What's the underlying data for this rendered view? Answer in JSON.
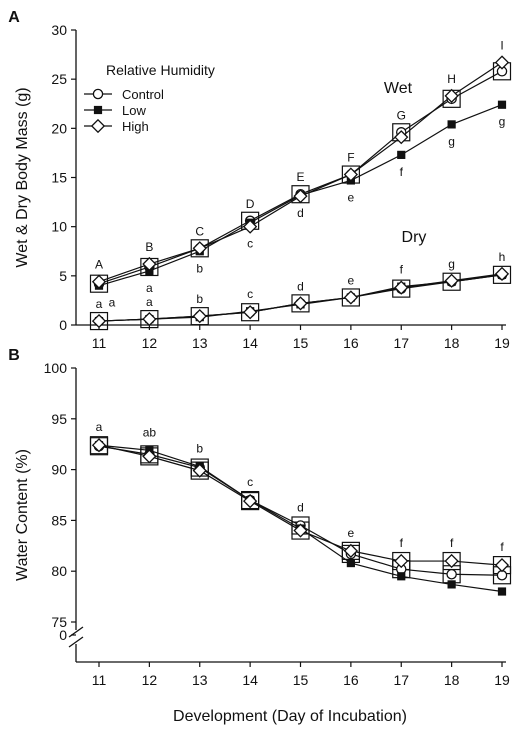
{
  "figure_xlabel": "Development (Day of Incubation)",
  "colors": {
    "ink": "#111111",
    "marker_fill": "#ffffff"
  },
  "chart_data": [
    {
      "panel": "A",
      "type": "line",
      "ylabel": "Wet & Dry Body Mass (g)",
      "ylim": [
        0,
        30
      ],
      "yticks": [
        0,
        5,
        10,
        15,
        20,
        25,
        30
      ],
      "x": [
        11,
        12,
        13,
        14,
        15,
        16,
        17,
        18,
        19
      ],
      "grid": false,
      "legend": {
        "title": "Relative Humidity",
        "placement": "top-left",
        "entries": [
          "Control",
          "Low",
          "High"
        ]
      },
      "group_labels": [
        "Wet",
        "Dry"
      ],
      "series": [
        {
          "name": "Control",
          "group": "Wet",
          "marker": "circle",
          "values": [
            4.2,
            5.9,
            7.8,
            10.6,
            13.3,
            15.3,
            19.6,
            23.0,
            25.8
          ]
        },
        {
          "name": "Low",
          "group": "Wet",
          "marker": "square",
          "values": [
            4.0,
            5.5,
            7.5,
            10.4,
            13.2,
            14.7,
            17.3,
            20.4,
            22.4
          ]
        },
        {
          "name": "High",
          "group": "Wet",
          "marker": "diamond",
          "values": [
            4.4,
            6.2,
            7.8,
            10.0,
            13.1,
            15.3,
            19.1,
            23.3,
            26.7
          ]
        },
        {
          "name": "Control",
          "group": "Dry",
          "marker": "circle",
          "values": [
            0.4,
            0.6,
            0.9,
            1.3,
            2.2,
            2.8,
            3.7,
            4.4,
            5.1
          ]
        },
        {
          "name": "Low",
          "group": "Dry",
          "marker": "square",
          "values": [
            0.4,
            0.6,
            0.8,
            1.4,
            2.1,
            2.8,
            3.9,
            4.4,
            5.1
          ]
        },
        {
          "name": "High",
          "group": "Dry",
          "marker": "diamond",
          "values": [
            0.4,
            0.6,
            0.9,
            1.3,
            2.2,
            2.8,
            3.8,
            4.5,
            5.2
          ]
        }
      ],
      "annotations": {
        "wet_upper": [
          "A",
          "B",
          "C",
          "D",
          "E",
          "F",
          "G",
          "H",
          "I"
        ],
        "wet_lower": [
          "a",
          "a",
          "b",
          "c",
          "d",
          "e",
          "f",
          "g",
          "g"
        ],
        "dry": [
          "a",
          "a",
          "b",
          "c",
          "d",
          "e",
          "f",
          "g",
          "h"
        ]
      }
    },
    {
      "panel": "B",
      "type": "line",
      "ylabel": "Water Content (%)",
      "ylim": [
        75,
        100
      ],
      "yticks": [
        75,
        80,
        85,
        90,
        95,
        100
      ],
      "axis_break": {
        "from": 0,
        "to": 75,
        "bottom_label": "0"
      },
      "x": [
        11,
        12,
        13,
        14,
        15,
        16,
        17,
        18,
        19
      ],
      "grid": false,
      "series": [
        {
          "name": "Control",
          "marker": "circle",
          "values": [
            92.3,
            91.5,
            90.2,
            87.0,
            84.5,
            81.7,
            80.2,
            79.7,
            79.6
          ]
        },
        {
          "name": "Low",
          "marker": "square",
          "values": [
            92.4,
            91.9,
            90.3,
            87.0,
            84.2,
            80.8,
            79.5,
            78.7,
            78.0
          ]
        },
        {
          "name": "High",
          "marker": "diamond",
          "values": [
            92.4,
            91.3,
            89.9,
            86.9,
            84.0,
            82.0,
            81.0,
            81.0,
            80.6
          ]
        }
      ],
      "annotations": [
        "a",
        "ab",
        "b",
        "c",
        "d",
        "e",
        "f",
        "f",
        "f"
      ]
    }
  ]
}
